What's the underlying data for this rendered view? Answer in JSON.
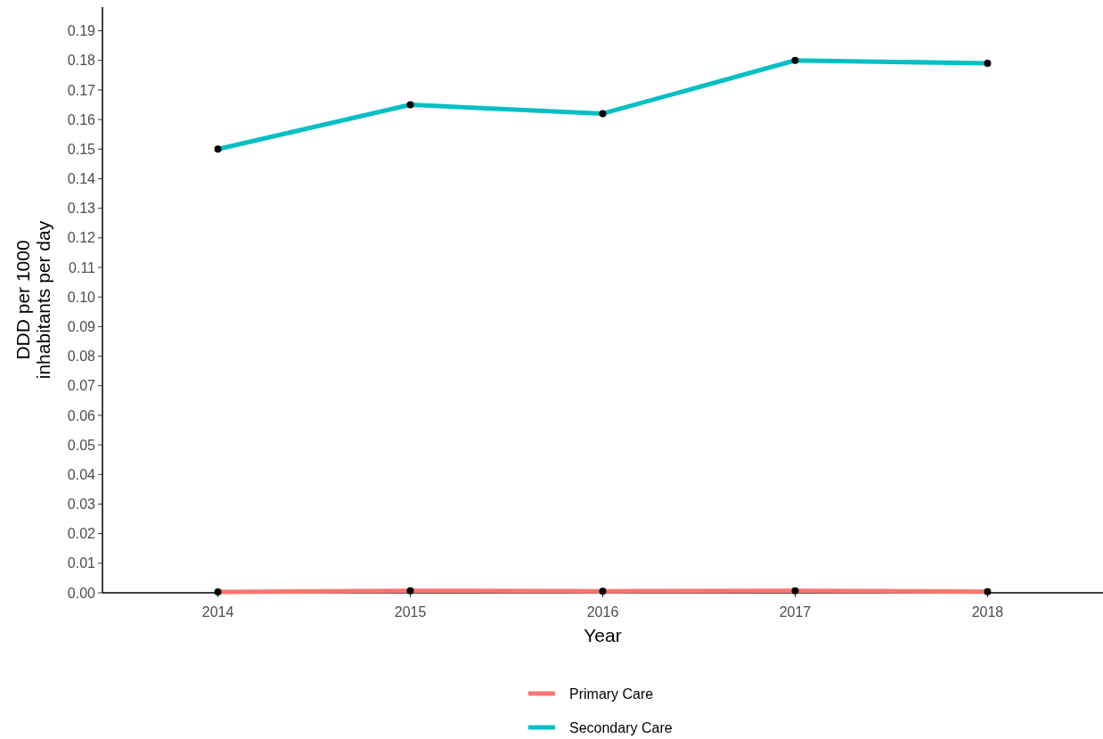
{
  "chart_data": {
    "type": "line",
    "xlabel": "Year",
    "ylabel": "DDD per 1000\ninhabitants per day",
    "x": [
      2014,
      2015,
      2016,
      2017,
      2018
    ],
    "xlim": [
      2013.4,
      2018.6
    ],
    "xticks": [
      2014,
      2015,
      2016,
      2017,
      2018
    ],
    "ylim": [
      0,
      0.198
    ],
    "yticks": [
      {
        "value": 0,
        "label": "0.00"
      },
      {
        "value": 0.01,
        "label": "0.01"
      },
      {
        "value": 0.02,
        "label": "0.02"
      },
      {
        "value": 0.03,
        "label": "0.03"
      },
      {
        "value": 0.04,
        "label": "0.04"
      },
      {
        "value": 0.05,
        "label": "0.05"
      },
      {
        "value": 0.06,
        "label": "0.06"
      },
      {
        "value": 0.07,
        "label": "0.07"
      },
      {
        "value": 0.08,
        "label": "0.08"
      },
      {
        "value": 0.09,
        "label": "0.09"
      },
      {
        "value": 0.1,
        "label": "0.10"
      },
      {
        "value": 0.11,
        "label": "0.11"
      },
      {
        "value": 0.12,
        "label": "0.12"
      },
      {
        "value": 0.13,
        "label": "0.13"
      },
      {
        "value": 0.14,
        "label": "0.14"
      },
      {
        "value": 0.15,
        "label": "0.15"
      },
      {
        "value": 0.16,
        "label": "0.16"
      },
      {
        "value": 0.17,
        "label": "0.17"
      },
      {
        "value": 0.18,
        "label": "0.18"
      },
      {
        "value": 0.19,
        "label": "0.19"
      }
    ],
    "series": [
      {
        "name": "Primary Care",
        "color": "#f8766d",
        "values": [
          0.0003,
          0.0007,
          0.0005,
          0.0007,
          0.0004
        ]
      },
      {
        "name": "Secondary Care",
        "color": "#00bfc4",
        "values": [
          0.15,
          0.165,
          0.162,
          0.18,
          0.179
        ]
      }
    ],
    "marker": "circle",
    "grid": false,
    "legend": "bottom"
  }
}
